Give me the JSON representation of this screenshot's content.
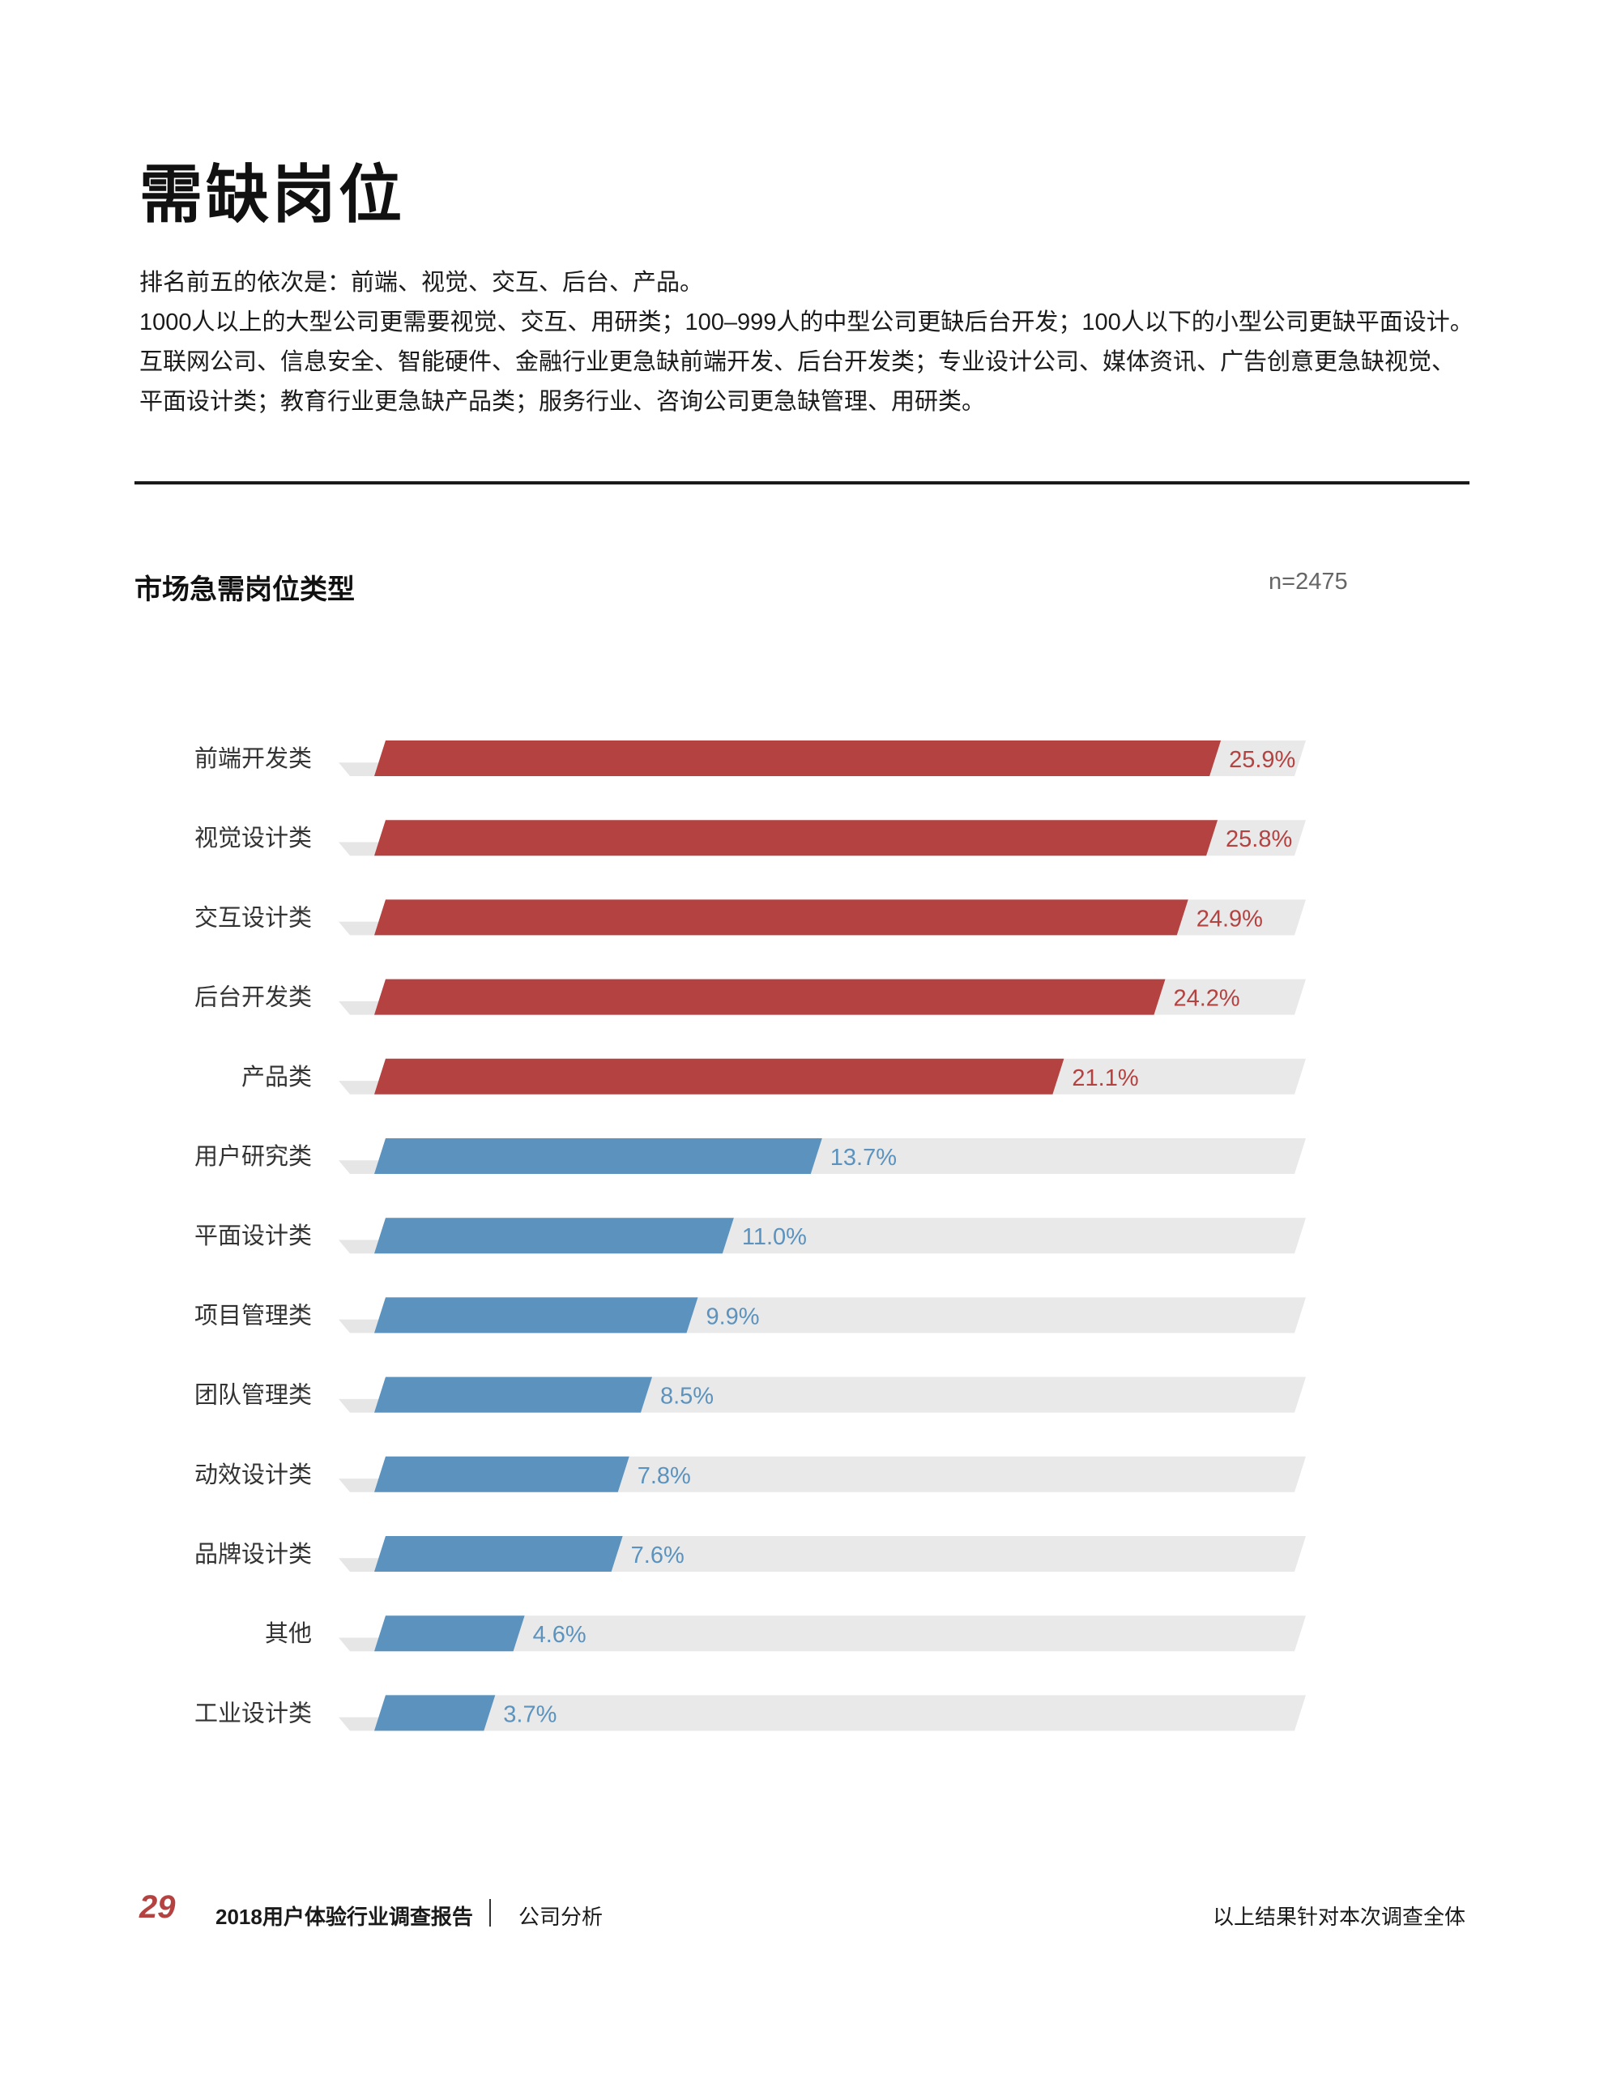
{
  "page": {
    "title": "需缺岗位",
    "intro": [
      "排名前五的依次是：前端、视觉、交互、后台、产品。",
      "1000人以上的大型公司更需要视觉、交互、用研类；100–999人的中型公司更缺后台开发；100人以下的小型公司更缺平面设计。 互联网公司、信息安全、智能硬件、金融行业更急缺前端开发、后台开发类；专业设计公司、媒体资讯、广告创意更急缺视觉、平面设计类；教育行业更急缺产品类；服务行业、咨询公司更急缺管理、用研类。"
    ]
  },
  "chart_data": {
    "type": "bar",
    "orientation": "horizontal",
    "title": "市场急需岗位类型",
    "sample_size": "n=2475",
    "categories": [
      "前端开发类",
      "视觉设计类",
      "交互设计类",
      "后台开发类",
      "产品类",
      "用户研究类",
      "平面设计类",
      "项目管理类",
      "团队管理类",
      "动效设计类",
      "品牌设计类",
      "其他",
      "工业设计类"
    ],
    "values": [
      25.9,
      25.8,
      24.9,
      24.2,
      21.1,
      13.7,
      11.0,
      9.9,
      8.5,
      7.8,
      7.6,
      4.6,
      3.7
    ],
    "labels": [
      "25.9%",
      "25.8%",
      "24.9%",
      "24.2%",
      "21.1%",
      "13.7%",
      "11.0%",
      "9.9%",
      "8.5%",
      "7.8%",
      "7.6%",
      "4.6%",
      "3.7%"
    ],
    "unit": "%",
    "highlight_top_n": 5,
    "colors": {
      "highlight": "#b44241",
      "normal": "#5b93be",
      "track": "#e9e9e9",
      "shadow": "#dcdcdc",
      "category_text": "#333333"
    },
    "grid": false,
    "legend": "none"
  },
  "footer": {
    "page_number": "29",
    "report_name": "2018用户体验行业调查报告",
    "section_name": "公司分析",
    "footnote": "以上结果针对本次调查全体"
  }
}
